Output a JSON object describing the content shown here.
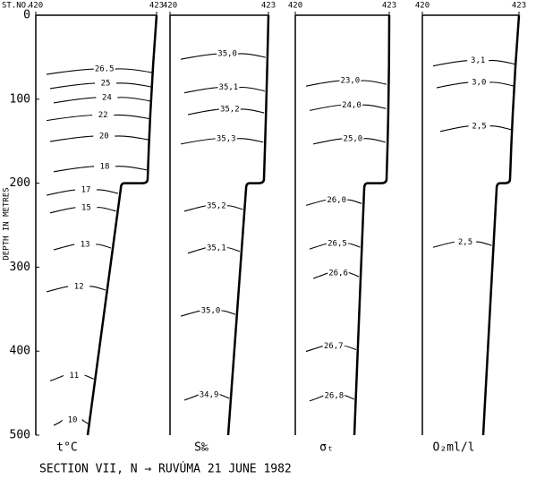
{
  "caption": "SECTION VII,  N → RUVÚMA   21 JUNE 1982",
  "station_label": "ST.NO.",
  "chart_data": [
    {
      "type": "contour",
      "xlabel": "t°C",
      "ylabel": "DEPTH IN METRES",
      "ylim": [
        0,
        500
      ],
      "yticks": [
        0,
        100,
        200,
        300,
        400,
        500
      ],
      "xlim": [
        420,
        423
      ],
      "xticks": [
        420,
        423
      ],
      "levels": [
        26.5,
        25,
        24,
        22,
        20,
        18,
        17,
        15,
        13,
        12,
        11,
        10
      ],
      "depths": [
        64,
        81,
        98,
        119,
        144,
        180,
        208,
        229,
        273,
        323,
        429,
        482
      ]
    },
    {
      "type": "contour",
      "xlabel": "S‰",
      "ylim": [
        0,
        500
      ],
      "xlim": [
        420,
        423
      ],
      "xticks": [
        420,
        423
      ],
      "levels": [
        35.0,
        35.1,
        35.2,
        35.3,
        35.2,
        35.1,
        35.0,
        34.9
      ],
      "value_labels": [
        "35,0",
        "35,1",
        "35,2",
        "35,3",
        "35,2",
        "35,1",
        "35,0",
        "34,9"
      ],
      "depths": [
        46,
        86,
        112,
        147,
        227,
        277,
        352,
        452
      ]
    },
    {
      "type": "contour",
      "xlabel": "σₜ",
      "ylim": [
        0,
        500
      ],
      "xlim": [
        420,
        423
      ],
      "xticks": [
        420,
        423
      ],
      "levels": [
        23.0,
        24.0,
        25.0,
        26.0,
        26.5,
        26.6,
        26.7,
        26.8
      ],
      "value_labels": [
        "23,0",
        "24,0",
        "25,0",
        "26,0",
        "26,5",
        "26,6",
        "26,7",
        "26,8"
      ],
      "depths": [
        78,
        107,
        147,
        220,
        272,
        307,
        394,
        453
      ]
    },
    {
      "type": "contour",
      "xlabel": "O₂ml/l",
      "ylim": [
        0,
        500
      ],
      "xlim": [
        420,
        423
      ],
      "xticks": [
        420,
        423
      ],
      "levels": [
        3.1,
        3.0,
        2.5,
        2.5
      ],
      "value_labels": [
        "3,1",
        "3,0",
        "2,5",
        "2,5"
      ],
      "depths": [
        54,
        80,
        132,
        270
      ]
    }
  ]
}
